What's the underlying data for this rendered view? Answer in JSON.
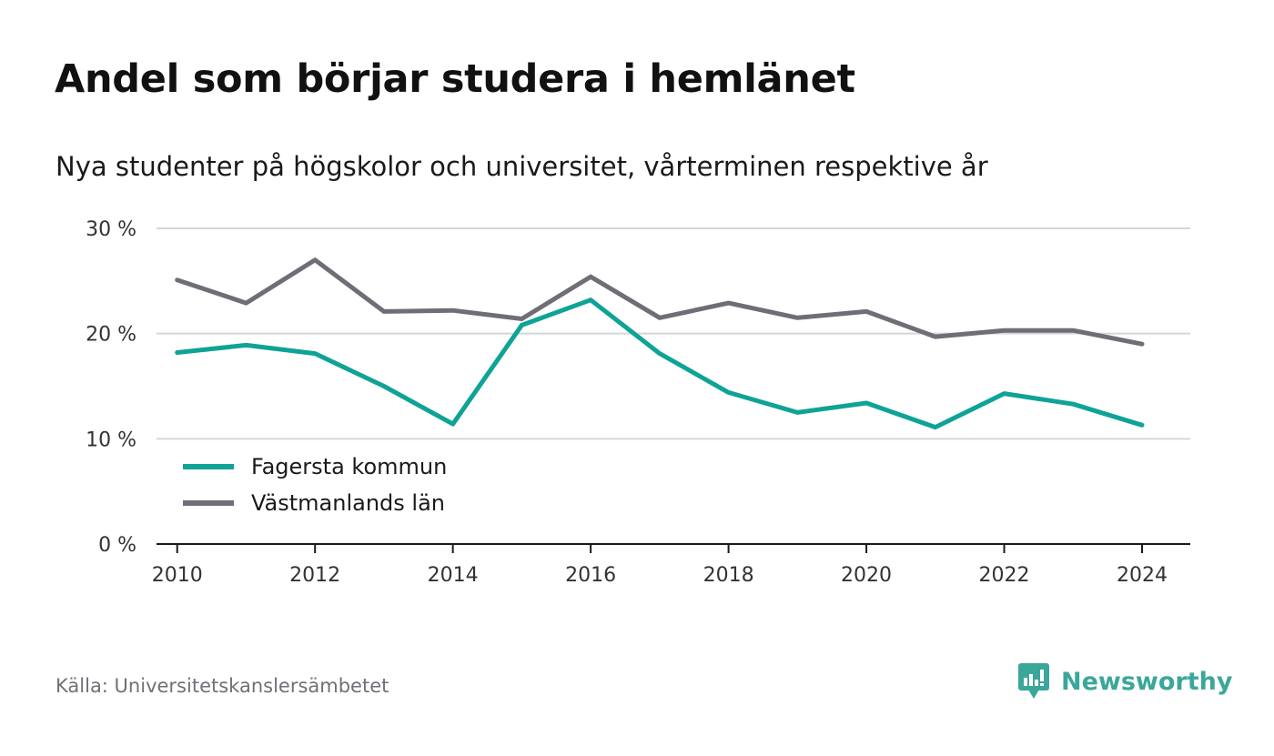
{
  "title": "Andel som börjar studera i hemlänet",
  "subtitle": "Nya studenter på högskolor och universitet, vårterminen respektive år",
  "source": "Källa: Universitetskanslersämbetet",
  "brand": "Newsworthy",
  "colors": {
    "fagersta": "#0fa397",
    "vastmanland": "#6f6e77",
    "grid": "#d6d6d6",
    "axis": "#1a1a1a",
    "brand": "#3aa79a"
  },
  "chart_data": {
    "type": "line",
    "x": [
      2010,
      2011,
      2012,
      2013,
      2014,
      2015,
      2016,
      2017,
      2018,
      2019,
      2020,
      2021,
      2022,
      2023,
      2024
    ],
    "x_ticks": [
      2010,
      2012,
      2014,
      2016,
      2018,
      2020,
      2022,
      2024
    ],
    "x_tick_labels": [
      "2010",
      "2012",
      "2014",
      "2016",
      "2018",
      "2020",
      "2022",
      "2024"
    ],
    "y_ticks": [
      0,
      10,
      20,
      30
    ],
    "y_tick_labels": [
      "0 %",
      "10 %",
      "20 %",
      "30 %"
    ],
    "xlim": [
      2009.7,
      2024.7
    ],
    "ylim": [
      0,
      30
    ],
    "grid": true,
    "legend_position": "bottom-left",
    "series": [
      {
        "name": "Fagersta kommun",
        "color_key": "fagersta",
        "values": [
          18.2,
          18.9,
          18.1,
          15.0,
          11.4,
          20.8,
          23.2,
          18.1,
          14.4,
          12.5,
          13.4,
          11.1,
          14.3,
          13.3,
          11.3
        ]
      },
      {
        "name": "Västmanlands län",
        "color_key": "vastmanland",
        "values": [
          25.1,
          22.9,
          27.0,
          22.1,
          22.2,
          21.4,
          25.4,
          21.5,
          22.9,
          21.5,
          22.1,
          19.7,
          20.3,
          20.3,
          19.0
        ]
      }
    ]
  }
}
